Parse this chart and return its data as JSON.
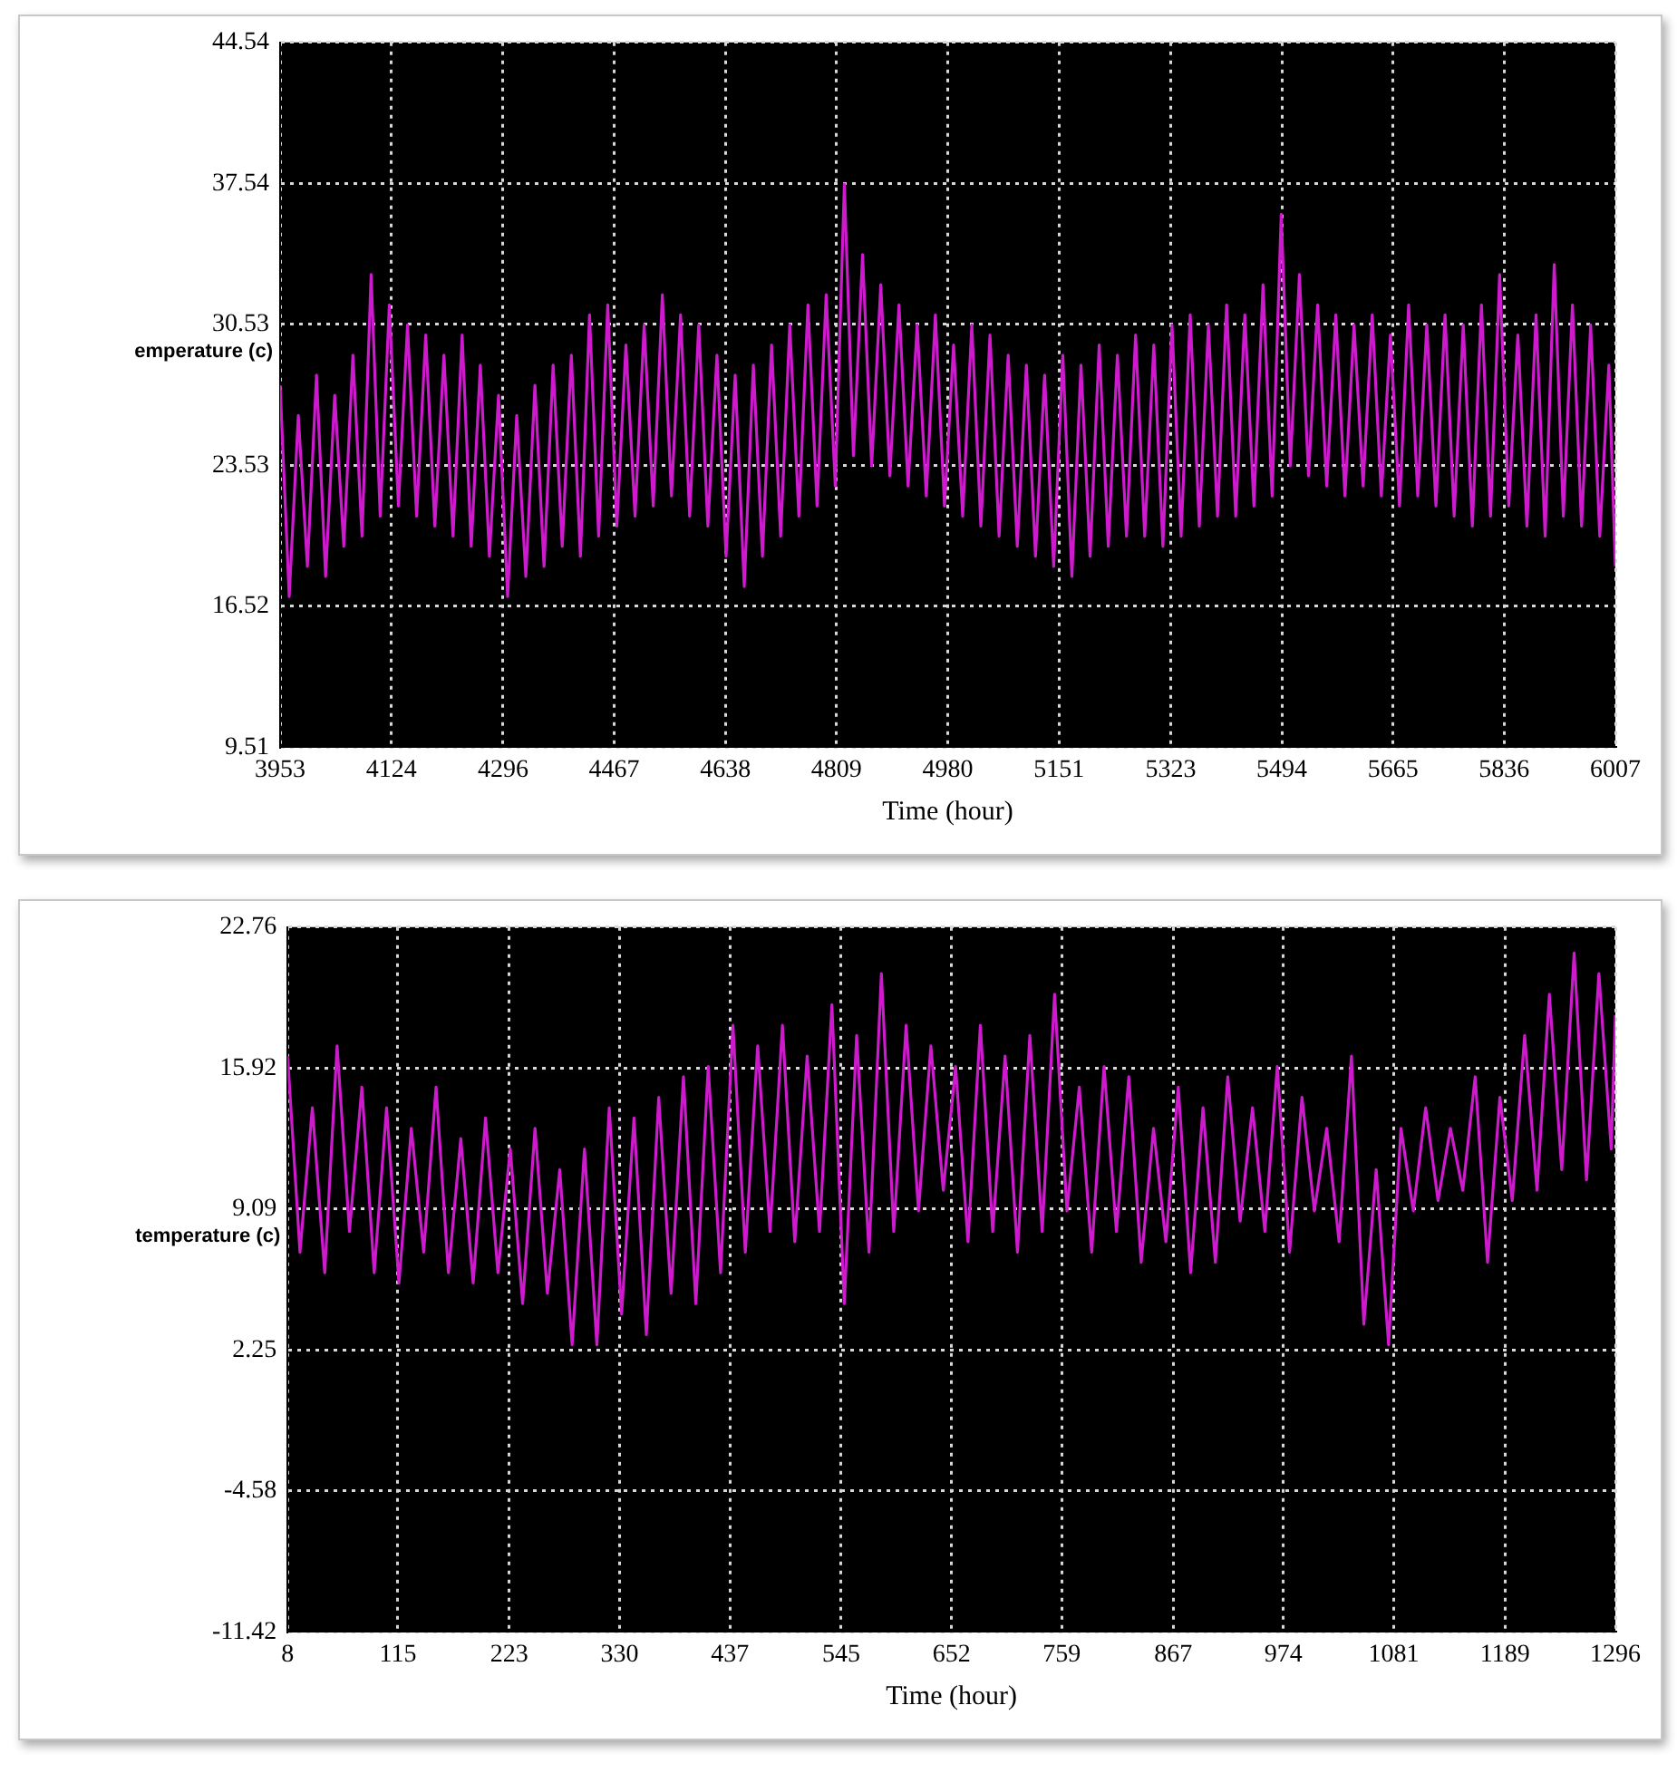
{
  "chart_data": [
    {
      "type": "line",
      "xlabel": "Time (hour)",
      "ylabel": "emperature (c)",
      "grid": true,
      "marker": "none",
      "xlim": [
        3953,
        6007
      ],
      "xticks": [
        3953,
        4124,
        4296,
        4467,
        4638,
        4809,
        4980,
        5151,
        5323,
        5494,
        5665,
        5836,
        6007
      ],
      "ylim": [
        9.51,
        44.54
      ],
      "yticks": [
        9.51,
        16.52,
        23.53,
        30.53,
        37.54,
        44.54
      ],
      "x": [
        3953,
        3967,
        3981,
        3995,
        4009,
        4023,
        4037,
        4051,
        4065,
        4079,
        4093,
        4107,
        4121,
        4135,
        4149,
        4163,
        4177,
        4191,
        4205,
        4219,
        4233,
        4247,
        4261,
        4275,
        4289,
        4303,
        4317,
        4331,
        4345,
        4359,
        4373,
        4387,
        4401,
        4415,
        4429,
        4443,
        4457,
        4471,
        4485,
        4499,
        4513,
        4527,
        4541,
        4555,
        4569,
        4583,
        4597,
        4611,
        4625,
        4639,
        4653,
        4667,
        4681,
        4695,
        4709,
        4723,
        4737,
        4751,
        4765,
        4779,
        4793,
        4807,
        4821,
        4835,
        4849,
        4863,
        4877,
        4891,
        4905,
        4919,
        4933,
        4947,
        4961,
        4975,
        4989,
        5003,
        5017,
        5031,
        5045,
        5059,
        5073,
        5087,
        5101,
        5115,
        5129,
        5143,
        5157,
        5171,
        5185,
        5199,
        5213,
        5227,
        5241,
        5255,
        5269,
        5283,
        5297,
        5311,
        5325,
        5339,
        5353,
        5367,
        5381,
        5395,
        5409,
        5423,
        5437,
        5451,
        5465,
        5479,
        5493,
        5507,
        5521,
        5535,
        5549,
        5563,
        5577,
        5591,
        5605,
        5619,
        5633,
        5647,
        5661,
        5675,
        5689,
        5703,
        5717,
        5731,
        5745,
        5759,
        5773,
        5787,
        5801,
        5815,
        5829,
        5843,
        5857,
        5871,
        5885,
        5899,
        5913,
        5927,
        5941,
        5955,
        5969,
        5983,
        5997,
        6007
      ],
      "series": [
        {
          "color": "#cc1acc",
          "values": [
            27.5,
            17,
            26,
            18.5,
            28,
            18,
            27,
            19.5,
            29,
            20,
            33,
            21,
            31.5,
            21.5,
            30.5,
            21,
            30,
            20.5,
            29,
            20,
            30,
            19.5,
            28.5,
            19,
            27,
            17,
            26,
            18,
            27.5,
            18.5,
            28.5,
            19.5,
            29,
            19,
            31,
            20,
            31.5,
            20.5,
            29.5,
            21,
            30.5,
            21.5,
            32,
            22,
            31,
            21,
            30.5,
            20.5,
            29,
            19,
            28,
            17.5,
            28.5,
            19,
            29.5,
            20,
            30.5,
            21,
            31.5,
            21.5,
            32,
            22.5,
            37.5,
            24,
            34,
            23.5,
            32.5,
            23,
            31.5,
            22.5,
            30.5,
            22,
            31,
            21.5,
            29.5,
            21,
            30.5,
            20.5,
            30,
            20,
            29,
            19.5,
            28.5,
            19,
            28,
            18.5,
            29,
            18,
            28.5,
            19,
            29.5,
            19.5,
            29,
            20,
            30,
            20,
            29.5,
            19.5,
            30.5,
            20,
            31,
            20.5,
            30.5,
            21,
            31.5,
            21,
            31,
            21.5,
            32.5,
            22,
            36,
            23.5,
            33,
            23,
            31.5,
            22.5,
            31,
            22,
            30.5,
            22.5,
            31,
            22,
            30,
            21.5,
            31.5,
            22,
            30.5,
            21.5,
            31,
            21,
            30.5,
            20.5,
            31.5,
            21,
            33,
            21.5,
            30,
            20.5,
            31,
            20,
            33.5,
            21,
            31.5,
            20.5,
            30.5,
            20,
            28.5,
            18.5
          ]
        }
      ]
    },
    {
      "type": "line",
      "xlabel": "Time (hour)",
      "ylabel": "temperature (c)",
      "grid": true,
      "marker": "none",
      "xlim": [
        8,
        1296
      ],
      "xticks": [
        8,
        115,
        223,
        330,
        437,
        545,
        652,
        759,
        867,
        974,
        1081,
        1189,
        1296
      ],
      "ylim": [
        -11.42,
        22.76
      ],
      "yticks": [
        -11.42,
        -4.58,
        2.25,
        9.09,
        15.92,
        22.76
      ],
      "x": [
        8,
        20,
        32,
        44,
        56,
        68,
        80,
        92,
        104,
        116,
        128,
        140,
        152,
        164,
        176,
        188,
        200,
        212,
        224,
        236,
        248,
        260,
        272,
        284,
        296,
        308,
        320,
        332,
        344,
        356,
        368,
        380,
        392,
        404,
        416,
        428,
        440,
        452,
        464,
        476,
        488,
        500,
        512,
        524,
        536,
        548,
        560,
        572,
        584,
        596,
        608,
        620,
        632,
        644,
        656,
        668,
        680,
        692,
        704,
        716,
        728,
        740,
        752,
        764,
        776,
        788,
        800,
        812,
        824,
        836,
        848,
        860,
        872,
        884,
        896,
        908,
        920,
        932,
        944,
        956,
        968,
        980,
        992,
        1004,
        1016,
        1028,
        1040,
        1052,
        1064,
        1076,
        1088,
        1100,
        1112,
        1124,
        1136,
        1148,
        1160,
        1172,
        1184,
        1196,
        1208,
        1220,
        1232,
        1244,
        1256,
        1268,
        1280,
        1292,
        1296
      ],
      "series": [
        {
          "color": "#cc1acc",
          "values": [
            16.5,
            7,
            14,
            6,
            17,
            8,
            15,
            6,
            14,
            5.5,
            13,
            7,
            15,
            6,
            12.5,
            5.5,
            13.5,
            6,
            12,
            4.5,
            13,
            5,
            11,
            2.5,
            12,
            2.5,
            14,
            4,
            13.5,
            3,
            14.5,
            5,
            15.5,
            4.5,
            16,
            6,
            18,
            7,
            17,
            8,
            18,
            7.5,
            16.5,
            8,
            19,
            4.5,
            17.5,
            7,
            20.5,
            8,
            18,
            9,
            17,
            10,
            16,
            7.5,
            18,
            8,
            16.5,
            7,
            17.5,
            8,
            19.5,
            9,
            15,
            7,
            16,
            8,
            15.5,
            6.5,
            13,
            7.5,
            15,
            6,
            14,
            6.5,
            15.5,
            8.5,
            14,
            8,
            16,
            7,
            14.5,
            9,
            13,
            7.5,
            16.5,
            3.5,
            11,
            2.5,
            13,
            9,
            14,
            9.5,
            13,
            10,
            15.5,
            6.5,
            14.5,
            9.5,
            17.5,
            10,
            19.5,
            11,
            21.5,
            10.5,
            20.5,
            12,
            18.5
          ]
        }
      ]
    }
  ]
}
